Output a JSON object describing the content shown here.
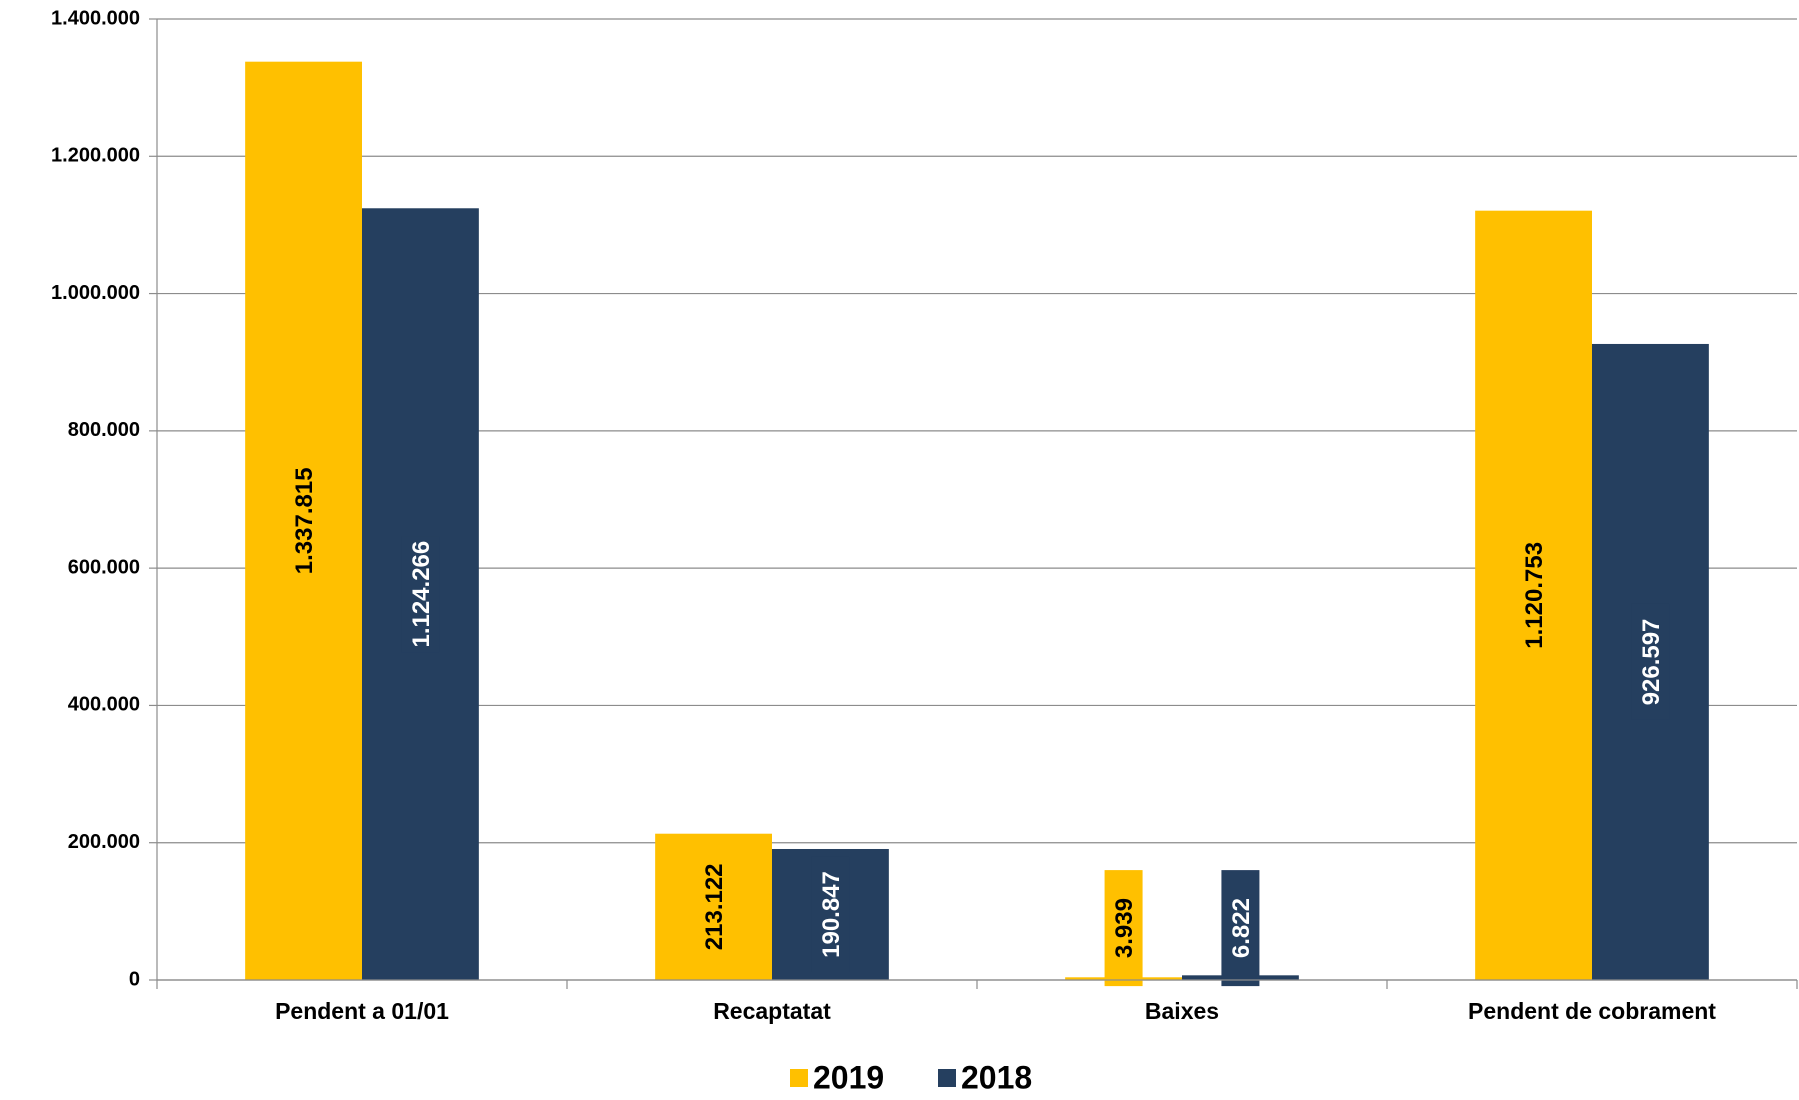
{
  "chart_data": {
    "type": "bar",
    "categories": [
      "Pendent a 01/01",
      "Recaptatat",
      "Baixes",
      "Pendent de cobrament"
    ],
    "series": [
      {
        "name": "2019",
        "color": "#ffc000",
        "label_color": "#000000",
        "values": [
          1337815,
          213122,
          3939,
          1120753
        ],
        "value_labels": [
          "1.337.815",
          "213.122",
          "3.939",
          "1.120.753"
        ]
      },
      {
        "name": "2018",
        "color": "#253f5f",
        "label_color": "#ffffff",
        "values": [
          1124266,
          190847,
          6822,
          926597
        ],
        "value_labels": [
          "1.124.266",
          "190.847",
          "6.822",
          "926.597"
        ]
      }
    ],
    "ylim": [
      0,
      1400000
    ],
    "yticks": [
      0,
      {
        "value": 200000,
        "label": "200.000"
      },
      {
        "value": 400000,
        "label": "400.000"
      },
      {
        "value": 600000,
        "label": "600.000"
      },
      {
        "value": 800000,
        "label": "800.000"
      },
      {
        "value": 1000000,
        "label": "1.000.000"
      },
      {
        "value": 1200000,
        "label": "1.200.000"
      },
      {
        "value": 1400000,
        "label": "1.400.000"
      }
    ],
    "grid": true,
    "legend": "bottom"
  }
}
